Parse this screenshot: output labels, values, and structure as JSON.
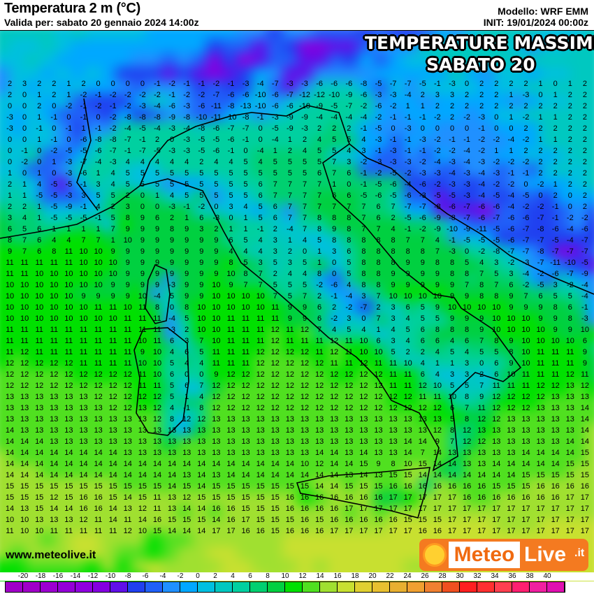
{
  "header": {
    "title": "Temperatura 2 m (°C)",
    "valid": "Valida per: sabato 20 gennaio 2024 14:00z",
    "model": "Modello: WRF EMM",
    "init": "INIT: 19/01/2024 00:00z"
  },
  "overlay": {
    "line1": "TEMPERATURE MASSIME",
    "line2": "SABATO 20"
  },
  "footer": {
    "website": "www.meteolive.it",
    "logo_text": "MeteoLive.it",
    "logo_icon": "sun-icon"
  },
  "colorbar": {
    "labels": [
      -20,
      -18,
      -16,
      -14,
      -12,
      -10,
      -8,
      -6,
      -4,
      -2,
      0,
      2,
      4,
      6,
      8,
      10,
      12,
      14,
      16,
      18,
      20,
      22,
      24,
      26,
      28,
      30,
      32,
      34,
      36,
      38,
      40
    ],
    "colors": [
      "#a000c8",
      "#a000c8",
      "#9c00d0",
      "#9400d8",
      "#9000e0",
      "#8400e0",
      "#6010e8",
      "#2040f0",
      "#2060f8",
      "#2090ff",
      "#00a8ff",
      "#00c0e0",
      "#00c8c0",
      "#00d0a0",
      "#00d070",
      "#00d040",
      "#00e000",
      "#50e020",
      "#a0e030",
      "#c8e030",
      "#e0d030",
      "#e8c030",
      "#e8b030",
      "#f0a030",
      "#f08030",
      "#f05020",
      "#ff2020",
      "#ff3030",
      "#ff4050",
      "#ff2070",
      "#f020a0",
      "#e010b0"
    ]
  },
  "temperature_grid": [
    [
      2,
      3,
      2,
      2,
      1,
      2,
      0,
      0,
      0,
      0,
      -1,
      -2,
      -1,
      -1,
      -2,
      -1,
      -3,
      -4,
      -7,
      -3,
      -3,
      -6,
      -6,
      -6,
      -8,
      -5,
      -7,
      -7,
      -5,
      -1,
      -3,
      0,
      2,
      2,
      2,
      2,
      1,
      0,
      1,
      2
    ],
    [
      2,
      0,
      1,
      2,
      1,
      -2,
      -1,
      -2,
      -2,
      -2,
      -2,
      -1,
      -2,
      -2,
      -7,
      -6,
      -6,
      -10,
      -6,
      -7,
      -12,
      -12,
      -10,
      -9,
      -6,
      -3,
      -3,
      -4,
      2,
      3,
      3,
      2,
      2,
      2,
      1,
      -3,
      0,
      1,
      2,
      2
    ],
    [
      0,
      0,
      2,
      0,
      -2,
      -1,
      -2,
      -1,
      -2,
      -3,
      -4,
      -6,
      -3,
      -6,
      -11,
      -8,
      -13,
      -10,
      -6,
      -6,
      -10,
      -9,
      -5,
      -7,
      -2,
      -6,
      -2,
      1,
      1,
      2,
      2,
      2,
      2,
      2,
      2,
      2,
      2,
      2,
      2,
      2
    ],
    [
      -3,
      0,
      1,
      -1,
      0,
      -1,
      0,
      -2,
      -8,
      -8,
      -8,
      -9,
      -8,
      -10,
      -11,
      -10,
      -8,
      -1,
      -3,
      -9,
      -9,
      -4,
      -4,
      -4,
      -4,
      -2,
      -1,
      -1,
      -1,
      -2,
      2,
      -2,
      -3,
      0,
      1,
      -2,
      1,
      1,
      2,
      2
    ],
    [
      -3,
      0,
      -1,
      0,
      -1,
      1,
      -1,
      -2,
      -4,
      -5,
      -4,
      -3,
      -4,
      -8,
      -6,
      -7,
      -7,
      0,
      -5,
      -9,
      -3,
      2,
      2,
      2,
      -1,
      -5,
      0,
      -3,
      0,
      0,
      0,
      0,
      -1,
      0,
      0,
      2,
      2,
      2,
      2,
      2
    ],
    [
      0,
      0,
      1,
      -1,
      0,
      -6,
      -8,
      -8,
      -7,
      -1,
      2,
      0,
      -3,
      -5,
      -5,
      -6,
      -1,
      0,
      -4,
      1,
      2,
      4,
      5,
      5,
      4,
      -3,
      -1,
      -1,
      -3,
      -2,
      -1,
      -1,
      -2,
      -2,
      -4,
      -2,
      1,
      1,
      2,
      2
    ],
    [
      0,
      -1,
      0,
      -2,
      -5,
      -5,
      -6,
      -7,
      -1,
      -7,
      -5,
      -3,
      -3,
      -5,
      -6,
      -1,
      0,
      -4,
      1,
      2,
      4,
      5,
      5,
      4,
      3,
      -1,
      -3,
      -1,
      -1,
      -2,
      -2,
      -4,
      -2,
      1,
      1,
      2,
      2,
      2,
      2,
      2
    ],
    [
      0,
      -2,
      0,
      1,
      -3,
      -7,
      -4,
      -3,
      4,
      4,
      4,
      4,
      4,
      2,
      4,
      4,
      5,
      4,
      5,
      5,
      5,
      5,
      7,
      3,
      -2,
      -3,
      -3,
      -3,
      -2,
      -4,
      -3,
      -4,
      -3,
      -2,
      -2,
      -2,
      2,
      2,
      2,
      2
    ],
    [
      1,
      0,
      1,
      0,
      -3,
      -6,
      1,
      4,
      5,
      5,
      5,
      5,
      5,
      5,
      5,
      5,
      5,
      5,
      5,
      5,
      5,
      6,
      7,
      6,
      -1,
      -2,
      -5,
      -2,
      -3,
      -3,
      -4,
      -3,
      -4,
      -3,
      -1,
      -1,
      2,
      2,
      2,
      2
    ],
    [
      2,
      1,
      4,
      -5,
      -5,
      -1,
      3,
      4,
      5,
      5,
      5,
      5,
      5,
      5,
      5,
      5,
      5,
      6,
      7,
      7,
      7,
      7,
      1,
      0,
      -1,
      -5,
      -6,
      -4,
      -6,
      -2,
      -3,
      -3,
      -4,
      -2,
      -2,
      0,
      -2,
      1,
      2,
      2
    ],
    [
      1,
      1,
      -5,
      -5,
      -3,
      3,
      5,
      5,
      2,
      0,
      1,
      4,
      5,
      5,
      5,
      5,
      5,
      6,
      7,
      7,
      7,
      7,
      6,
      6,
      -5,
      -6,
      -5,
      -6,
      -3,
      -5,
      -5,
      -3,
      -4,
      -5,
      -4,
      -5,
      0,
      2,
      0,
      2
    ],
    [
      2,
      2,
      1,
      -5,
      -9,
      -1,
      4,
      2,
      3,
      0,
      0,
      -3,
      -1,
      -2,
      0,
      3,
      4,
      5,
      6,
      7,
      7,
      7,
      7,
      7,
      7,
      6,
      7,
      -7,
      -7,
      -8,
      -6,
      -7,
      -6,
      -6,
      -4,
      -2,
      -2,
      -1,
      0,
      2
    ],
    [
      3,
      4,
      1,
      -5,
      -5,
      -5,
      -1,
      5,
      8,
      9,
      6,
      2,
      1,
      6,
      -3,
      0,
      1,
      5,
      6,
      7,
      7,
      8,
      8,
      8,
      7,
      6,
      2,
      -5,
      -6,
      -9,
      -8,
      -7,
      -6,
      -7,
      -6,
      -6,
      -7,
      -1,
      -2,
      -2
    ],
    [
      6,
      5,
      6,
      1,
      1,
      1,
      1,
      7,
      9,
      9,
      9,
      8,
      9,
      3,
      2,
      1,
      1,
      -1,
      2,
      -4,
      7,
      8,
      9,
      8,
      7,
      7,
      4,
      -1,
      -2,
      -9,
      -10,
      -9,
      -11,
      -5,
      -6,
      -7,
      -8,
      -6,
      -4,
      -6
    ],
    [
      8,
      7,
      6,
      4,
      4,
      7,
      7,
      1,
      10,
      9,
      9,
      9,
      9,
      9,
      9,
      6,
      5,
      4,
      3,
      1,
      4,
      5,
      8,
      8,
      8,
      8,
      8,
      7,
      7,
      4,
      -1,
      -5,
      -5,
      -5,
      -6,
      -7,
      -7,
      -5,
      -4,
      -7
    ],
    [
      9,
      7,
      6,
      8,
      11,
      10,
      10,
      9,
      9,
      9,
      9,
      9,
      9,
      9,
      9,
      4,
      4,
      4,
      3,
      2,
      0,
      1,
      3,
      6,
      8,
      8,
      8,
      8,
      8,
      7,
      -3,
      0,
      -2,
      -8,
      -7,
      -7,
      -8,
      -7,
      -7,
      -7
    ],
    [
      11,
      11,
      11,
      11,
      11,
      10,
      10,
      10,
      9,
      9,
      9,
      9,
      9,
      9,
      9,
      8,
      5,
      3,
      5,
      3,
      5,
      1,
      0,
      5,
      8,
      8,
      8,
      9,
      9,
      8,
      8,
      5,
      4,
      3,
      -2,
      -3,
      -7,
      -11,
      -10,
      -5
    ],
    [
      11,
      11,
      10,
      10,
      10,
      10,
      10,
      10,
      9,
      9,
      9,
      9,
      9,
      9,
      9,
      10,
      8,
      7,
      2,
      4,
      4,
      8,
      0,
      5,
      8,
      8,
      9,
      9,
      9,
      9,
      8,
      8,
      7,
      5,
      3,
      -4,
      -2,
      -6,
      -7,
      -9
    ],
    [
      10,
      10,
      10,
      10,
      10,
      10,
      10,
      9,
      9,
      9,
      9,
      -3,
      9,
      9,
      10,
      9,
      7,
      7,
      5,
      5,
      5,
      -2,
      -6,
      4,
      8,
      8,
      9,
      9,
      9,
      9,
      9,
      7,
      8,
      7,
      6,
      -2,
      -5,
      3,
      -2,
      -4
    ],
    [
      10,
      10,
      10,
      10,
      10,
      9,
      9,
      9,
      9,
      10,
      -4,
      5,
      9,
      9,
      10,
      10,
      10,
      10,
      7,
      5,
      7,
      2,
      -1,
      -4,
      3,
      7,
      10,
      10,
      10,
      10,
      9,
      9,
      8,
      8,
      9,
      7,
      6,
      5,
      5,
      -4
    ],
    [
      10,
      10,
      10,
      10,
      10,
      10,
      11,
      11,
      10,
      11,
      8,
      0,
      8,
      10,
      10,
      10,
      10,
      10,
      11,
      9,
      9,
      6,
      2,
      -2,
      -7,
      2,
      3,
      6,
      5,
      9,
      10,
      10,
      10,
      10,
      9,
      9,
      9,
      8,
      6,
      -1
    ],
    [
      10,
      10,
      10,
      10,
      10,
      10,
      10,
      10,
      11,
      11,
      11,
      -4,
      5,
      10,
      10,
      11,
      11,
      11,
      11,
      9,
      9,
      6,
      -2,
      3,
      0,
      7,
      3,
      4,
      5,
      5,
      9,
      9,
      9,
      10,
      10,
      10,
      9,
      9,
      8,
      -3
    ],
    [
      11,
      11,
      11,
      11,
      11,
      11,
      11,
      11,
      11,
      11,
      11,
      -3,
      2,
      10,
      10,
      11,
      11,
      11,
      12,
      11,
      12,
      7,
      4,
      5,
      4,
      1,
      4,
      5,
      6,
      8,
      8,
      8,
      9,
      10,
      10,
      10,
      10,
      9,
      9,
      10
    ],
    [
      11,
      11,
      11,
      11,
      11,
      11,
      11,
      11,
      11,
      10,
      11,
      6,
      3,
      7,
      10,
      11,
      11,
      11,
      12,
      11,
      11,
      11,
      12,
      11,
      10,
      6,
      3,
      4,
      6,
      6,
      4,
      6,
      7,
      8,
      9,
      10,
      10,
      10,
      10,
      6
    ],
    [
      11,
      12,
      11,
      11,
      11,
      11,
      11,
      11,
      11,
      9,
      10,
      4,
      6,
      5,
      11,
      11,
      11,
      12,
      12,
      12,
      12,
      11,
      12,
      11,
      10,
      10,
      5,
      2,
      2,
      4,
      5,
      4,
      5,
      5,
      8,
      10,
      11,
      11,
      11,
      9
    ],
    [
      12,
      12,
      12,
      12,
      12,
      11,
      11,
      11,
      11,
      10,
      10,
      5,
      4,
      4,
      11,
      11,
      11,
      12,
      12,
      12,
      12,
      12,
      11,
      11,
      12,
      11,
      11,
      10,
      4,
      1,
      1,
      3,
      0,
      6,
      9,
      10,
      11,
      11,
      11,
      9
    ],
    [
      12,
      12,
      12,
      12,
      12,
      12,
      12,
      12,
      12,
      11,
      10,
      6,
      0,
      0,
      9,
      12,
      12,
      12,
      12,
      12,
      12,
      12,
      12,
      12,
      12,
      12,
      11,
      11,
      6,
      4,
      3,
      3,
      2,
      6,
      10,
      11,
      11,
      11,
      12,
      11
    ],
    [
      12,
      12,
      12,
      12,
      12,
      12,
      12,
      12,
      12,
      11,
      11,
      5,
      6,
      7,
      12,
      12,
      12,
      12,
      12,
      12,
      12,
      12,
      12,
      12,
      12,
      12,
      11,
      11,
      12,
      10,
      5,
      5,
      7,
      11,
      11,
      11,
      12,
      12,
      13,
      12
    ],
    [
      13,
      13,
      13,
      13,
      13,
      13,
      12,
      12,
      12,
      12,
      12,
      5,
      1,
      4,
      12,
      12,
      12,
      12,
      12,
      12,
      12,
      12,
      12,
      12,
      12,
      12,
      12,
      12,
      11,
      11,
      10,
      8,
      9,
      12,
      12,
      12,
      12,
      13,
      13,
      13
    ],
    [
      13,
      13,
      13,
      13,
      13,
      13,
      13,
      12,
      12,
      13,
      12,
      4,
      -1,
      8,
      12,
      12,
      12,
      12,
      12,
      12,
      12,
      12,
      12,
      12,
      12,
      12,
      12,
      12,
      12,
      12,
      6,
      7,
      11,
      12,
      12,
      12,
      13,
      13,
      13,
      14
    ],
    [
      13,
      13,
      13,
      13,
      13,
      13,
      13,
      13,
      13,
      13,
      12,
      8,
      12,
      12,
      13,
      13,
      13,
      13,
      13,
      13,
      13,
      13,
      13,
      13,
      13,
      13,
      13,
      13,
      13,
      13,
      5,
      8,
      12,
      12,
      13,
      13,
      13,
      13,
      13,
      14
    ],
    [
      14,
      13,
      13,
      13,
      13,
      13,
      13,
      13,
      13,
      13,
      13,
      13,
      13,
      13,
      13,
      13,
      13,
      13,
      13,
      13,
      13,
      13,
      13,
      13,
      13,
      13,
      13,
      13,
      13,
      12,
      8,
      12,
      13,
      13,
      13,
      13,
      13,
      13,
      13,
      14
    ],
    [
      14,
      14,
      14,
      13,
      13,
      13,
      13,
      13,
      13,
      13,
      13,
      13,
      13,
      13,
      13,
      13,
      13,
      13,
      13,
      13,
      13,
      13,
      13,
      13,
      13,
      13,
      13,
      14,
      14,
      9,
      7,
      12,
      12,
      13,
      13,
      13,
      13,
      13,
      14,
      14
    ],
    [
      14,
      14,
      14,
      14,
      14,
      14,
      14,
      14,
      13,
      13,
      13,
      13,
      13,
      13,
      13,
      13,
      13,
      13,
      13,
      13,
      13,
      14,
      14,
      13,
      14,
      13,
      13,
      14,
      7,
      14,
      13,
      13,
      13,
      13,
      13,
      14,
      14,
      14,
      14,
      15
    ],
    [
      14,
      14,
      14,
      14,
      14,
      14,
      14,
      14,
      14,
      14,
      14,
      14,
      14,
      14,
      14,
      14,
      14,
      14,
      14,
      14,
      10,
      12,
      14,
      14,
      15,
      9,
      8,
      10,
      15,
      14,
      14,
      13,
      13,
      14,
      14,
      14,
      14,
      14,
      15,
      15
    ],
    [
      14,
      14,
      14,
      14,
      14,
      14,
      14,
      14,
      14,
      14,
      14,
      14,
      13,
      14,
      13,
      14,
      14,
      14,
      14,
      14,
      14,
      14,
      14,
      13,
      14,
      13,
      15,
      15,
      14,
      14,
      14,
      14,
      14,
      14,
      14,
      15,
      15,
      15,
      15,
      15
    ],
    [
      15,
      15,
      15,
      15,
      15,
      15,
      15,
      15,
      15,
      15,
      15,
      14,
      15,
      14,
      15,
      15,
      15,
      15,
      15,
      15,
      15,
      14,
      14,
      15,
      15,
      15,
      16,
      16,
      16,
      16,
      16,
      16,
      16,
      15,
      15,
      15,
      16,
      16,
      16,
      16
    ],
    [
      15,
      15,
      15,
      12,
      15,
      16,
      16,
      15,
      14,
      15,
      11,
      13,
      12,
      15,
      15,
      15,
      15,
      15,
      15,
      16,
      16,
      16,
      16,
      16,
      16,
      16,
      17,
      17,
      17,
      17,
      17,
      16,
      16,
      16,
      16,
      16,
      16,
      16,
      17,
      17
    ],
    [
      14,
      13,
      15,
      14,
      14,
      16,
      16,
      14,
      13,
      12,
      11,
      13,
      14,
      14,
      16,
      16,
      15,
      15,
      15,
      16,
      16,
      16,
      16,
      17,
      17,
      17,
      17,
      17,
      17,
      17,
      17,
      17,
      17,
      17,
      17,
      17,
      17,
      17,
      17,
      17
    ],
    [
      10,
      10,
      13,
      13,
      13,
      12,
      11,
      14,
      11,
      14,
      16,
      15,
      15,
      15,
      14,
      16,
      17,
      15,
      15,
      15,
      16,
      15,
      16,
      16,
      16,
      16,
      16,
      15,
      15,
      15,
      17,
      17,
      17,
      17,
      17,
      17,
      17,
      17,
      17,
      17
    ],
    [
      11,
      10,
      10,
      11,
      11,
      11,
      11,
      11,
      12,
      10,
      15,
      14,
      14,
      14,
      17,
      17,
      16,
      16,
      15,
      16,
      16,
      16,
      17,
      17,
      17,
      17,
      17,
      17,
      16,
      16,
      17,
      17,
      17,
      17,
      17,
      17,
      17,
      17,
      17,
      17
    ]
  ]
}
